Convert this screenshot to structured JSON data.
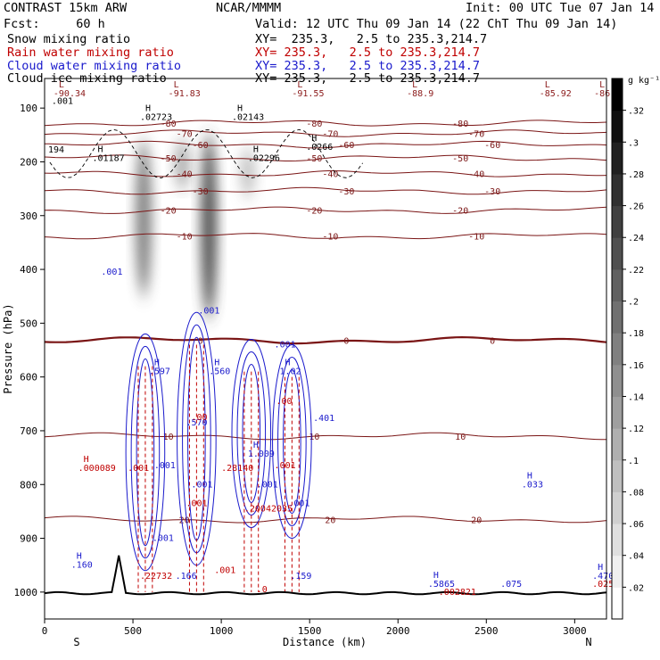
{
  "header": {
    "model": "CONTRAST 15km ARW",
    "center": "NCAR/MMMM",
    "init": "Init: 00 UTC Tue 07 Jan 14",
    "fcst": "Fcst:     60 h",
    "valid": "Valid: 12 UTC Thu 09 Jan 14 (22 ChT Thu 09 Jan 14)",
    "lines": [
      {
        "field": "Snow mixing ratio",
        "xy": "XY=  235.3,   2.5 to 235.3,214.7",
        "color": "#000000"
      },
      {
        "field": "Rain water mixing ratio",
        "xy": "XY= 235.3,   2.5 to 235.3,214.7",
        "color": "#c00000"
      },
      {
        "field": "Cloud water mixing ratio",
        "xy": "XY= 235.3,   2.5 to 235.3,214.7",
        "color": "#1a1acc"
      },
      {
        "field": "Cloud ice mixing ratio",
        "xy": "XY= 235.3,   2.5 to 235.3,214.7",
        "color": "#000000"
      }
    ]
  },
  "chart_data": {
    "type": "cross-section",
    "xlabel": "Distance (km)",
    "ylabel": "Pressure (hPa)",
    "xlim": [
      0,
      3180
    ],
    "ylim": [
      1050,
      45
    ],
    "xticks": [
      0,
      500,
      1000,
      1500,
      2000,
      2500,
      3000
    ],
    "yticks": [
      100,
      200,
      300,
      400,
      500,
      600,
      700,
      800,
      900,
      1000
    ],
    "x_end_labels": {
      "left": "S",
      "right": "N"
    },
    "colorbar": {
      "unit": "g kg⁻¹",
      "ticks": [
        ".02",
        ".04",
        ".06",
        ".08",
        ".1",
        ".12",
        ".14",
        ".16",
        ".18",
        ".2",
        ".22",
        ".24",
        ".26",
        ".28",
        ".3",
        ".32"
      ],
      "range": [
        0,
        0.34
      ]
    },
    "temperature_isotherms": [
      {
        "label": "-80",
        "p": 128
      },
      {
        "label": "-70",
        "p": 147
      },
      {
        "label": "-60",
        "p": 168
      },
      {
        "label": "-50",
        "p": 193
      },
      {
        "label": "-40",
        "p": 222
      },
      {
        "label": "-30",
        "p": 254
      },
      {
        "label": "-20",
        "p": 290
      },
      {
        "label": "-10",
        "p": 338
      },
      {
        "label": "0",
        "p": 532
      },
      {
        "label": "10",
        "p": 710
      },
      {
        "label": "20",
        "p": 865
      }
    ],
    "extrema_labels": [
      {
        "letter": "L",
        "value": "-90.34",
        "x": 50,
        "p": 78,
        "color": "#8b1a1a"
      },
      {
        "letter": "L",
        "value": "-91.83",
        "x": 700,
        "p": 78,
        "color": "#8b1a1a"
      },
      {
        "letter": "L",
        "value": "-91.55",
        "x": 1400,
        "p": 78,
        "color": "#8b1a1a"
      },
      {
        "letter": "L",
        "value": "-88.9",
        "x": 2050,
        "p": 78,
        "color": "#8b1a1a"
      },
      {
        "letter": "L",
        "value": "-85.92",
        "x": 2800,
        "p": 78,
        "color": "#8b1a1a"
      },
      {
        "letter": "L",
        "value": "-86.",
        "x": 3110,
        "p": 78,
        "color": "#8b1a1a"
      },
      {
        "letter": "",
        "value": ".001",
        "x": 40,
        "p": 92,
        "color": "#000000"
      },
      {
        "letter": "H",
        "value": ".02723",
        "x": 540,
        "p": 122,
        "color": "#000000"
      },
      {
        "letter": "H",
        "value": ".02143",
        "x": 1060,
        "p": 122,
        "color": "#000000"
      },
      {
        "letter": "H",
        "value": ".0266",
        "x": 1480,
        "p": 178,
        "color": "#000000"
      },
      {
        "letter": "H",
        "value": ".01187",
        "x": 270,
        "p": 198,
        "color": "#000000"
      },
      {
        "letter": "",
        "value": "194",
        "x": 20,
        "p": 183,
        "color": "#000000"
      },
      {
        "letter": "H",
        "value": ".02296",
        "x": 1150,
        "p": 198,
        "color": "#000000"
      },
      {
        "letter": "",
        "value": ".001",
        "x": 320,
        "p": 410,
        "color": "#1a1acc"
      },
      {
        "letter": "",
        "value": ".001",
        "x": 870,
        "p": 482,
        "color": "#1a1acc"
      },
      {
        "letter": "",
        "value": ".001",
        "x": 1300,
        "p": 545,
        "color": "#1a1acc"
      },
      {
        "letter": "H",
        "value": ".597",
        "x": 590,
        "p": 595,
        "color": "#1a1acc"
      },
      {
        "letter": "H",
        "value": ".560",
        "x": 930,
        "p": 595,
        "color": "#1a1acc"
      },
      {
        "letter": "H",
        "value": "1.02",
        "x": 1330,
        "p": 595,
        "color": "#1a1acc"
      },
      {
        "letter": "",
        "value": ".401",
        "x": 1520,
        "p": 682,
        "color": "#1a1acc"
      },
      {
        "letter": "",
        "value": ".570",
        "x": 800,
        "p": 690,
        "color": "#1a1acc"
      },
      {
        "letter": "H",
        "value": "1.009",
        "x": 1150,
        "p": 748,
        "color": "#1a1acc"
      },
      {
        "letter": "",
        "value": ".001",
        "x": 620,
        "p": 770,
        "color": "#1a1acc"
      },
      {
        "letter": "",
        "value": ".001",
        "x": 830,
        "p": 805,
        "color": "#1a1acc"
      },
      {
        "letter": "",
        "value": ".001",
        "x": 1200,
        "p": 805,
        "color": "#1a1acc"
      },
      {
        "letter": "",
        "value": ".001",
        "x": 1380,
        "p": 840,
        "color": "#1a1acc"
      },
      {
        "letter": "",
        "value": ".001",
        "x": 610,
        "p": 905,
        "color": "#1a1acc"
      },
      {
        "letter": "H",
        "value": ".033",
        "x": 2700,
        "p": 805,
        "color": "#1a1acc"
      },
      {
        "letter": "H",
        "value": ".160",
        "x": 150,
        "p": 955,
        "color": "#1a1acc"
      },
      {
        "letter": "",
        "value": ".166",
        "x": 740,
        "p": 975,
        "color": "#1a1acc"
      },
      {
        "letter": "",
        "value": ".159",
        "x": 1390,
        "p": 975,
        "color": "#1a1acc"
      },
      {
        "letter": "H",
        "value": ".5865",
        "x": 2170,
        "p": 990,
        "color": "#1a1acc"
      },
      {
        "letter": "",
        "value": ".075",
        "x": 2580,
        "p": 990,
        "color": "#1a1acc"
      },
      {
        "letter": "H",
        "value": ".4704",
        "x": 3100,
        "p": 975,
        "color": "#1a1acc"
      },
      {
        "letter": "H",
        "value": ".000089",
        "x": 190,
        "p": 775,
        "color": "#c00000"
      },
      {
        "letter": "",
        "value": ".001",
        "x": 470,
        "p": 775,
        "color": "#c00000"
      },
      {
        "letter": "",
        "value": ".00",
        "x": 830,
        "p": 680,
        "color": "#c00000"
      },
      {
        "letter": "",
        "value": ".00",
        "x": 1310,
        "p": 650,
        "color": "#c00000"
      },
      {
        "letter": "",
        "value": ".001",
        "x": 1300,
        "p": 770,
        "color": "#c00000"
      },
      {
        "letter": "",
        "value": ".28140",
        "x": 1000,
        "p": 775,
        "color": "#c00000"
      },
      {
        "letter": "",
        "value": ".001",
        "x": 800,
        "p": 840,
        "color": "#c00000"
      },
      {
        "letter": "",
        "value": ".20042035",
        "x": 1130,
        "p": 850,
        "color": "#c00000"
      },
      {
        "letter": "",
        "value": ".22732",
        "x": 540,
        "p": 975,
        "color": "#c00000"
      },
      {
        "letter": "",
        "value": ".001",
        "x": 960,
        "p": 965,
        "color": "#c00000"
      },
      {
        "letter": "",
        "value": ".0",
        "x": 1200,
        "p": 1000,
        "color": "#c00000"
      },
      {
        "letter": "",
        "value": ".002821",
        "x": 2230,
        "p": 1005,
        "color": "#c00000"
      },
      {
        "letter": "",
        "value": ".0256",
        "x": 3100,
        "p": 990,
        "color": "#c00000"
      }
    ],
    "snow_bands": [
      {
        "x": 560,
        "p_top": 160,
        "p_bottom": 450,
        "intensity": 0.55
      },
      {
        "x": 780,
        "p_top": 160,
        "p_bottom": 250,
        "intensity": 0.35
      },
      {
        "x": 930,
        "p_top": 150,
        "p_bottom": 490,
        "intensity": 0.75
      },
      {
        "x": 1150,
        "p_top": 175,
        "p_bottom": 265,
        "intensity": 0.25
      }
    ]
  }
}
